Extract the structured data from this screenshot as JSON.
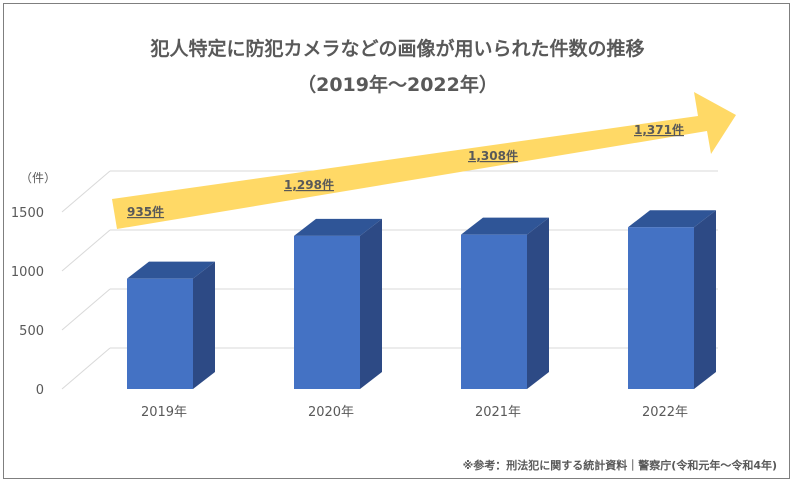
{
  "header": {
    "title_line1": "犯人特定に防犯カメラなどの画像が用いられた件数の推移",
    "title_line2": "（2019年～2022年）"
  },
  "chart_data": {
    "type": "bar",
    "title": "犯人特定に防犯カメラなどの画像が用いられた件数の推移（2019年～2022年）",
    "categories": [
      "2019年",
      "2020年",
      "2021年",
      "2022年"
    ],
    "series": [
      {
        "values": [
          935,
          1298,
          1308,
          1371
        ]
      }
    ],
    "data_labels": [
      "935件",
      "1,298件",
      "1,308件",
      "1,371件"
    ],
    "ylabel": "（件）",
    "ylim": [
      0,
      1500
    ],
    "yticks": [
      0,
      500,
      1000,
      1500
    ],
    "grid": true,
    "legend": "none",
    "annotations": [
      "trend-arrow"
    ],
    "colors": {
      "bar_front": "#4472c4",
      "bar_side": "#2d4a85",
      "bar_top": "#2f5597",
      "arrow": "#ffd966",
      "grid": "#d9d9d9",
      "text": "#595959"
    }
  },
  "footer": {
    "source": "※参考：刑法犯に関する統計資料｜警察庁(令和元年～令和4年)"
  }
}
